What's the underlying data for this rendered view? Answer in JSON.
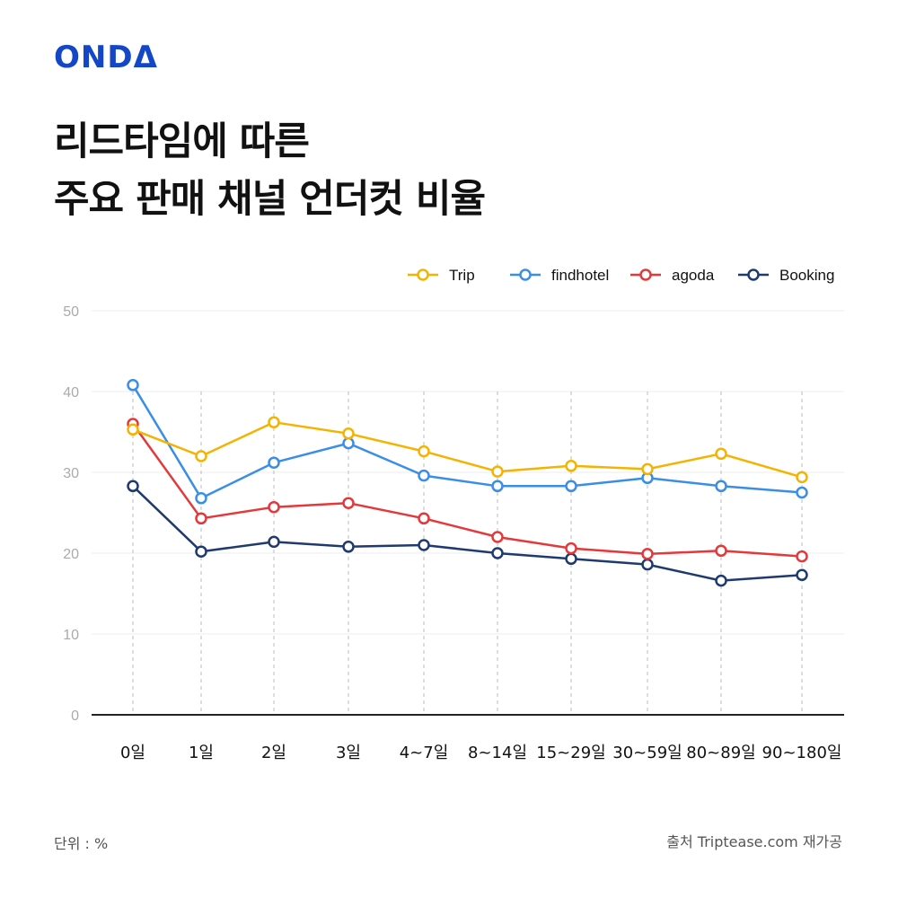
{
  "brand": {
    "logo": "ONDΔ"
  },
  "title_lines": [
    "리드타임에 따른",
    "주요 판매 채널 언더컷 비율"
  ],
  "footer": {
    "unit": "단위 : %",
    "source": "출처 Triptease.com 재가공"
  },
  "chart_data": {
    "type": "line",
    "categories": [
      "0일",
      "1일",
      "2일",
      "3일",
      "4~7일",
      "8~14일",
      "15~29일",
      "30~59일",
      "80~89일",
      "90~180일"
    ],
    "ylim": [
      0,
      50
    ],
    "yticks": [
      0,
      10,
      20,
      30,
      40,
      50
    ],
    "grid": true,
    "legend_position": "top-right",
    "series": [
      {
        "name": "Trip",
        "color": "#f5b301",
        "values": [
          35.3,
          32,
          36.2,
          34.8,
          32.6,
          30.1,
          30.8,
          30.4,
          32.3,
          29.4
        ]
      },
      {
        "name": "findhotel",
        "color": "#3a8ee6",
        "values": [
          40.8,
          26.8,
          31.2,
          33.6,
          29.6,
          28.3,
          28.3,
          29.3,
          28.3,
          27.5
        ]
      },
      {
        "name": "agoda",
        "color": "#e5383b",
        "values": [
          36.0,
          24.3,
          25.7,
          26.2,
          24.3,
          22.0,
          20.6,
          19.9,
          20.3,
          19.6
        ]
      },
      {
        "name": "Booking",
        "color": "#1f3a6e",
        "values": [
          28.3,
          20.2,
          21.4,
          20.8,
          21.0,
          20.0,
          19.3,
          18.6,
          16.6,
          17.3
        ]
      }
    ]
  }
}
